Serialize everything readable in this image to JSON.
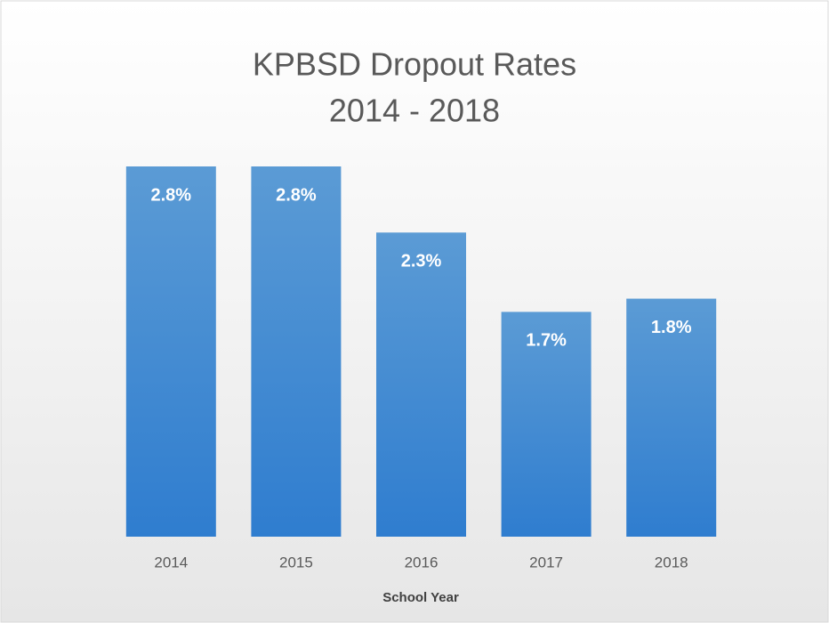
{
  "chart_data": {
    "type": "bar",
    "title": "KPBSD Dropout Rates",
    "subtitle": "2014 - 2018",
    "categories": [
      "2014",
      "2015",
      "2016",
      "2017",
      "2018"
    ],
    "values": [
      2.8,
      2.8,
      2.3,
      1.7,
      1.8
    ],
    "value_labels": [
      "2.8%",
      "2.8%",
      "2.3%",
      "1.7%",
      "1.8%"
    ],
    "xlabel": "School Year",
    "color": "#4a8fd6"
  }
}
